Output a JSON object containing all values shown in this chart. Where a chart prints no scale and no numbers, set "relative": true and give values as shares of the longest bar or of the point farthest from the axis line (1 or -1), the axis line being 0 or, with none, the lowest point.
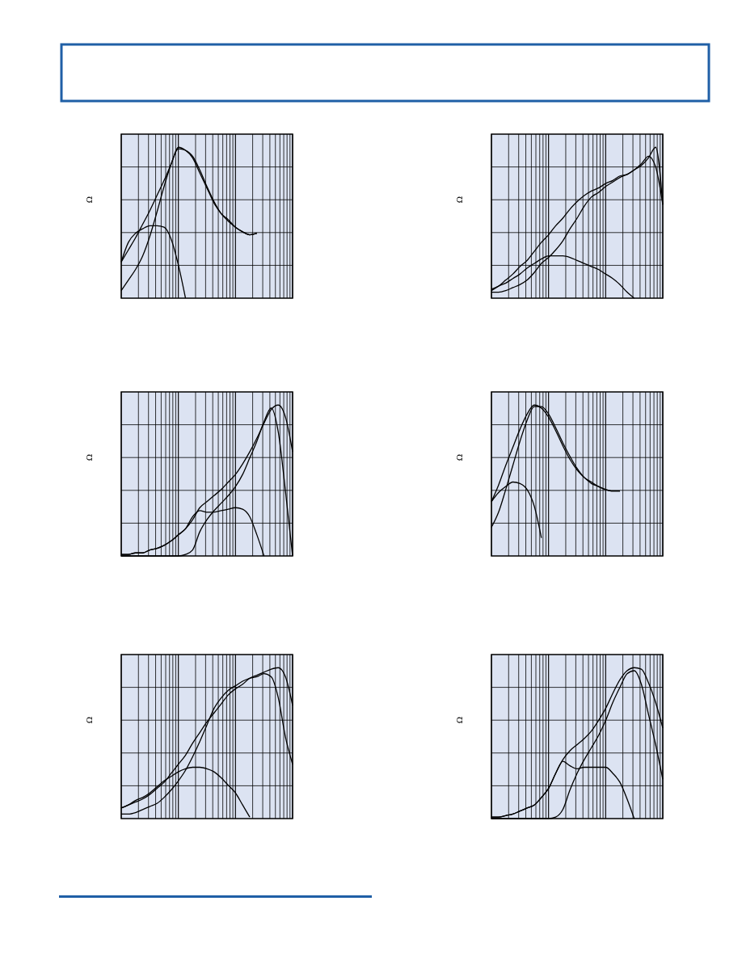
{
  "chart_data": [
    {
      "type": "line",
      "ylabel": "Ω",
      "relative": true,
      "grid": true,
      "categories": [
        null,
        null,
        null,
        null,
        null,
        null,
        null,
        null,
        null,
        null,
        null,
        null,
        null,
        null,
        null,
        null,
        null,
        null,
        null,
        null,
        null,
        null,
        null,
        null,
        null
      ],
      "series": [
        {
          "color": "#000000",
          "values": [
            0.24,
            0.32,
            0.4,
            0.49,
            0.58,
            0.68,
            0.78,
            0.89,
            1.0,
            0.98,
            0.93,
            0.83,
            0.73,
            0.63,
            0.56,
            0.51,
            0.47,
            0.44,
            0.42,
            0.43,
            null,
            null,
            null,
            null,
            null
          ]
        },
        {
          "color": "#000000",
          "values": [
            0.05,
            0.12,
            0.19,
            0.28,
            0.41,
            0.57,
            0.74,
            0.89,
            0.99,
            0.98,
            0.94,
            0.85,
            0.74,
            0.64,
            0.56,
            0.52,
            0.47,
            0.44,
            0.42,
            0.43,
            null,
            null,
            null,
            null,
            null
          ]
        },
        {
          "color": "#000000",
          "values": [
            0.24,
            0.37,
            0.43,
            0.46,
            0.48,
            0.48,
            0.47,
            0.39,
            0.22,
            0,
            null,
            null,
            null,
            null,
            null,
            null,
            null,
            null,
            null,
            null,
            null,
            null,
            null,
            null,
            null
          ]
        }
      ]
    },
    {
      "type": "line",
      "ylabel": "Ω",
      "relative": true,
      "grid": true,
      "categories": [
        null,
        null,
        null,
        null,
        null,
        null,
        null,
        null,
        null,
        null,
        null,
        null,
        null,
        null,
        null,
        null,
        null,
        null,
        null,
        null,
        null,
        null,
        null,
        null,
        null
      ],
      "series": [
        {
          "color": "#000000",
          "values": [
            0.06,
            0.08,
            0.12,
            0.16,
            0.21,
            0.25,
            0.31,
            0.37,
            0.42,
            0.48,
            0.53,
            0.59,
            0.64,
            0.68,
            0.71,
            0.73,
            0.76,
            0.78,
            0.81,
            0.82,
            0.85,
            0.88,
            0.93,
            1.0,
            0.62
          ]
        },
        {
          "color": "#000000",
          "values": [
            0.04,
            0.04,
            0.05,
            0.07,
            0.09,
            0.12,
            0.17,
            0.23,
            0.27,
            0.32,
            0.38,
            0.46,
            0.53,
            0.61,
            0.67,
            0.7,
            0.74,
            0.77,
            0.8,
            0.82,
            0.85,
            0.89,
            0.94,
            0.87,
            0.62
          ]
        },
        {
          "color": "#000000",
          "values": [
            0.05,
            0.08,
            0.1,
            0.13,
            0.16,
            0.2,
            0.23,
            0.26,
            0.28,
            0.28,
            0.28,
            0.27,
            0.25,
            0.23,
            0.21,
            0.19,
            0.16,
            0.13,
            0.09,
            0.04,
            0,
            null,
            null,
            null,
            null
          ]
        }
      ]
    },
    {
      "type": "line",
      "ylabel": "Ω",
      "relative": true,
      "grid": true,
      "categories": [
        null,
        null,
        null,
        null,
        null,
        null,
        null,
        null,
        null,
        null,
        null,
        null,
        null,
        null,
        null,
        null,
        null,
        null,
        null,
        null,
        null,
        null,
        null,
        null,
        null
      ],
      "series": [
        {
          "color": "#000000",
          "values": [
            0.01,
            0.01,
            0.02,
            0.02,
            0.04,
            0.05,
            0.07,
            0.1,
            0.14,
            0.18,
            0.24,
            0.32,
            0.36,
            0.4,
            0.44,
            0.49,
            0.54,
            0.61,
            0.69,
            0.78,
            0.88,
            0.97,
            1.0,
            0.92,
            0.69
          ]
        },
        {
          "color": "#000000",
          "values": [
            0,
            0,
            0,
            0,
            0,
            0,
            0,
            0,
            0,
            0.01,
            0.04,
            0.16,
            0.24,
            0.3,
            0.35,
            0.4,
            0.46,
            0.54,
            0.65,
            0.76,
            0.89,
            0.98,
            0.82,
            0.43,
            0
          ]
        },
        {
          "color": "#000000",
          "values": [
            0.01,
            0.01,
            0.02,
            0.02,
            0.04,
            0.05,
            0.07,
            0.1,
            0.14,
            0.18,
            0.26,
            0.3,
            0.29,
            0.29,
            0.3,
            0.31,
            0.32,
            0.31,
            0.26,
            0.14,
            0,
            null,
            null,
            null,
            null
          ]
        }
      ]
    },
    {
      "type": "line",
      "ylabel": "Ω",
      "relative": true,
      "grid": true,
      "categories": [
        null,
        null,
        null,
        null,
        null,
        null,
        null,
        null,
        null,
        null,
        null,
        null,
        null,
        null,
        null,
        null,
        null,
        null,
        null,
        null,
        null,
        null,
        null,
        null,
        null
      ],
      "series": [
        {
          "color": "#000000",
          "values": [
            0.36,
            0.47,
            0.6,
            0.72,
            0.84,
            0.94,
            1.0,
            0.98,
            0.92,
            0.83,
            0.73,
            0.64,
            0.57,
            0.52,
            0.48,
            0.46,
            0.44,
            0.43,
            0.43,
            null,
            null,
            null,
            null,
            null,
            null
          ]
        },
        {
          "color": "#000000",
          "values": [
            0.19,
            0.29,
            0.44,
            0.6,
            0.76,
            0.9,
            0.99,
            0.99,
            0.94,
            0.85,
            0.75,
            0.66,
            0.58,
            0.52,
            0.49,
            0.46,
            0.44,
            0.43,
            0.43,
            null,
            null,
            null,
            null,
            null,
            null
          ]
        },
        {
          "color": "#000000",
          "values": [
            0.36,
            0.42,
            0.46,
            0.49,
            0.48,
            0.44,
            0.33,
            0.12,
            null,
            null,
            null,
            null,
            null,
            null,
            null,
            null,
            null,
            null,
            null,
            null,
            null,
            null,
            null,
            null,
            null
          ]
        }
      ]
    },
    {
      "type": "line",
      "ylabel": "Ω",
      "relative": true,
      "grid": true,
      "categories": [
        null,
        null,
        null,
        null,
        null,
        null,
        null,
        null,
        null,
        null,
        null,
        null,
        null,
        null,
        null,
        null,
        null,
        null,
        null,
        null,
        null,
        null,
        null,
        null,
        null
      ],
      "series": [
        {
          "color": "#000000",
          "values": [
            0.07,
            0.09,
            0.11,
            0.13,
            0.16,
            0.2,
            0.24,
            0.3,
            0.36,
            0.42,
            0.5,
            0.57,
            0.64,
            0.7,
            0.76,
            0.82,
            0.86,
            0.89,
            0.93,
            0.95,
            0.97,
            0.99,
            1.0,
            0.94,
            0.75
          ]
        },
        {
          "color": "#000000",
          "values": [
            0.03,
            0.03,
            0.04,
            0.06,
            0.08,
            0.1,
            0.14,
            0.19,
            0.25,
            0.32,
            0.41,
            0.51,
            0.62,
            0.73,
            0.8,
            0.85,
            0.88,
            0.91,
            0.93,
            0.94,
            0.96,
            0.94,
            0.8,
            0.54,
            0.36
          ]
        },
        {
          "color": "#000000",
          "values": [
            0.07,
            0.09,
            0.12,
            0.14,
            0.17,
            0.21,
            0.25,
            0.28,
            0.31,
            0.33,
            0.34,
            0.34,
            0.33,
            0.31,
            0.27,
            0.22,
            0.17,
            0.09,
            0.01,
            null,
            null,
            null,
            null,
            null,
            null
          ]
        }
      ]
    },
    {
      "type": "line",
      "ylabel": "Ω",
      "relative": true,
      "grid": true,
      "categories": [
        null,
        null,
        null,
        null,
        null,
        null,
        null,
        null,
        null,
        null,
        null,
        null,
        null,
        null,
        null,
        null,
        null,
        null,
        null,
        null,
        null,
        null,
        null,
        null,
        null
      ],
      "series": [
        {
          "color": "#000000",
          "values": [
            0.01,
            0.01,
            0.02,
            0.03,
            0.05,
            0.07,
            0.09,
            0.14,
            0.2,
            0.3,
            0.39,
            0.45,
            0.49,
            0.53,
            0.58,
            0.65,
            0.73,
            0.83,
            0.92,
            0.98,
            1.0,
            0.99,
            0.9,
            0.77,
            0.6
          ]
        },
        {
          "color": "#000000",
          "values": [
            0,
            0,
            0,
            0,
            0,
            0,
            0,
            0,
            0,
            0.01,
            0.06,
            0.19,
            0.3,
            0.39,
            0.47,
            0.55,
            0.65,
            0.77,
            0.87,
            0.96,
            0.98,
            0.89,
            0.69,
            0.49,
            0.26
          ]
        },
        {
          "color": "#000000",
          "values": [
            0.01,
            0.01,
            0.02,
            0.03,
            0.05,
            0.07,
            0.09,
            0.14,
            0.2,
            0.3,
            0.38,
            0.35,
            0.33,
            0.34,
            0.34,
            0.34,
            0.34,
            0.3,
            0.24,
            0.13,
            0,
            null,
            null,
            null,
            null
          ]
        }
      ]
    }
  ]
}
